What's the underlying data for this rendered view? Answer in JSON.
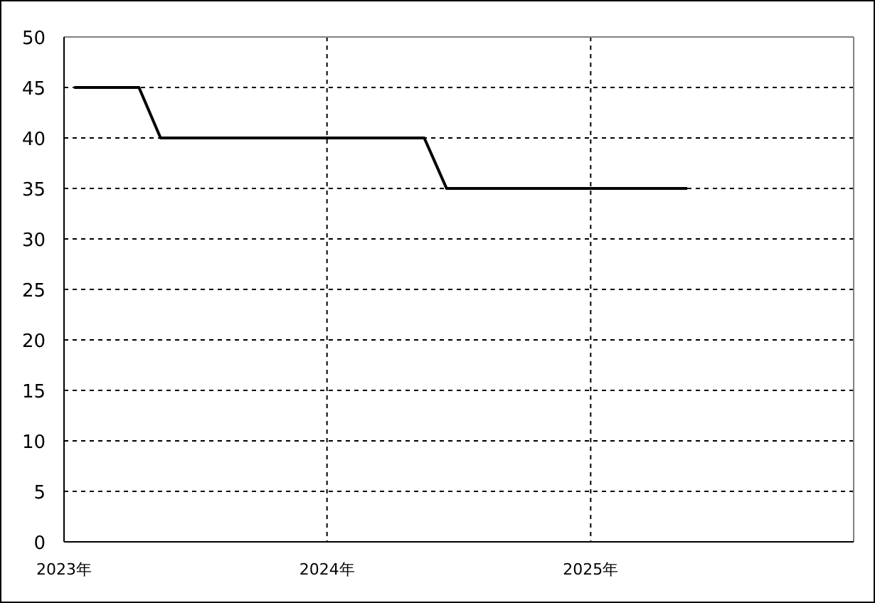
{
  "chart_data": {
    "type": "line",
    "x": [
      "2023-01-15",
      "2023-04-15",
      "2023-05-15",
      "2024-05-15",
      "2024-06-15",
      "2025-05-15"
    ],
    "series": [
      {
        "color": "#000000",
        "values": [
          45,
          45,
          40,
          40,
          35,
          35
        ]
      }
    ],
    "xlim": [
      "2023-01-01",
      "2026-01-01"
    ],
    "xticks": [
      {
        "value": "2023-01-01",
        "label": "2023年"
      },
      {
        "value": "2024-01-01",
        "label": "2024年"
      },
      {
        "value": "2025-01-01",
        "label": "2025年"
      }
    ],
    "ylim": [
      0,
      50
    ],
    "yticks": [
      0,
      5,
      10,
      15,
      20,
      25,
      30,
      35,
      40,
      45,
      50
    ],
    "grid": true,
    "line_style": "solid",
    "marker": "none"
  }
}
